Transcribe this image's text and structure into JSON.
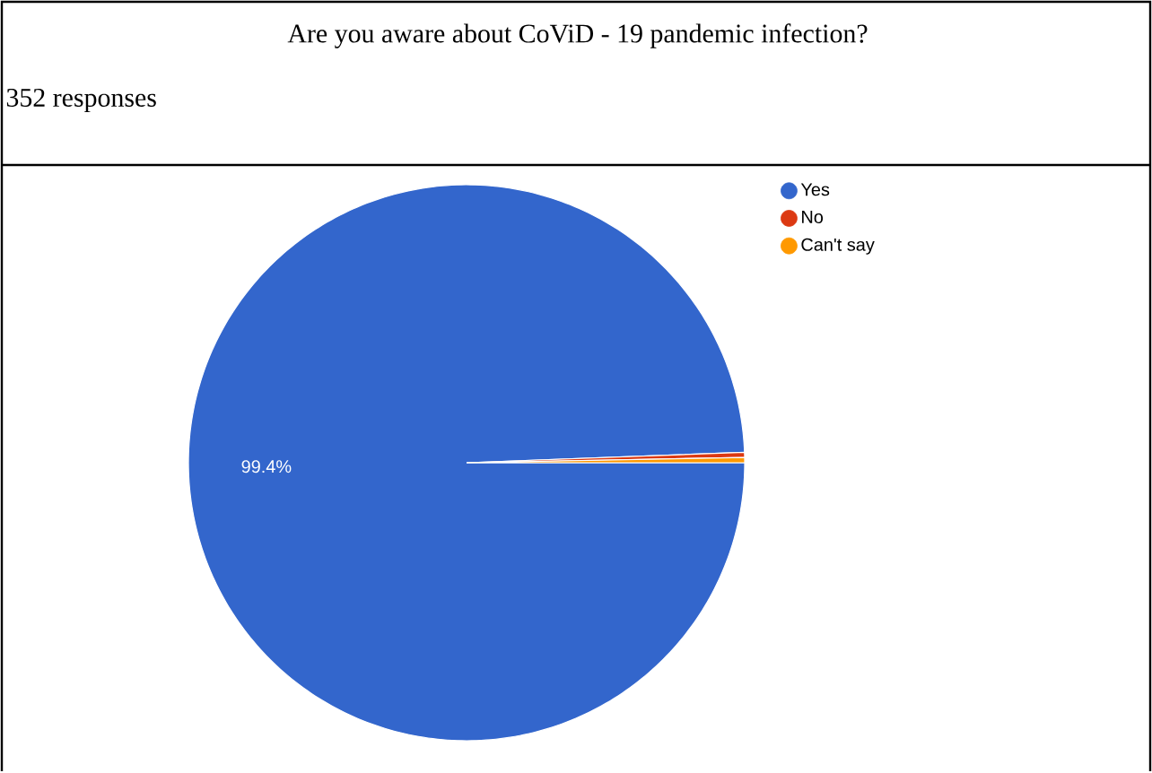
{
  "chart_data": {
    "type": "pie",
    "title": "Are you aware about CoViD - 19 pandemic infection?",
    "subtitle": "352 responses",
    "categories": [
      "Yes",
      "No",
      "Can't say"
    ],
    "values": [
      99.4,
      0.3,
      0.3
    ],
    "colors": [
      "#3366cc",
      "#dc3912",
      "#ff9900"
    ],
    "value_labels": [
      "99.4%",
      null,
      null
    ],
    "legend": "top right"
  }
}
